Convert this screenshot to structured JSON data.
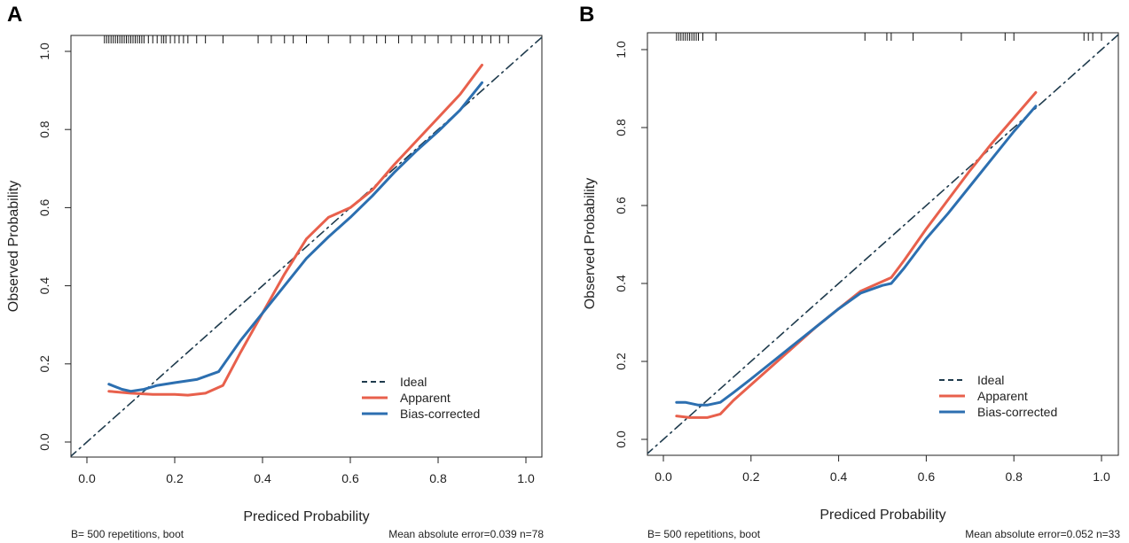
{
  "chart_data": [
    {
      "type": "line",
      "panel_label": "A",
      "xlabel": "Prediced Probability",
      "ylabel": "Observed Probability",
      "xlim": [
        0.0,
        1.0
      ],
      "ylim": [
        0.0,
        1.0
      ],
      "x_ticks": [
        "0.0",
        "0.2",
        "0.4",
        "0.6",
        "0.8",
        "1.0"
      ],
      "y_ticks": [
        "0.0",
        "0.2",
        "0.4",
        "0.6",
        "0.8",
        "1.0"
      ],
      "legend": {
        "placement": "bottom-right",
        "entries": [
          "Ideal",
          "Apparent",
          "Bias-corrected"
        ]
      },
      "series": [
        {
          "name": "Ideal",
          "color": "#1f3b4d",
          "style": "dashed",
          "x": [
            -0.04,
            1.04
          ],
          "y": [
            -0.04,
            1.04
          ]
        },
        {
          "name": "Apparent",
          "color": "#e8604c",
          "style": "solid",
          "x": [
            0.05,
            0.1,
            0.15,
            0.2,
            0.23,
            0.27,
            0.31,
            0.35,
            0.4,
            0.45,
            0.5,
            0.55,
            0.6,
            0.65,
            0.7,
            0.75,
            0.8,
            0.85,
            0.9
          ],
          "y": [
            0.13,
            0.125,
            0.122,
            0.122,
            0.12,
            0.125,
            0.145,
            0.23,
            0.33,
            0.43,
            0.52,
            0.575,
            0.6,
            0.645,
            0.71,
            0.77,
            0.83,
            0.89,
            0.965
          ]
        },
        {
          "name": "Bias-corrected",
          "color": "#2c6fb0",
          "style": "solid",
          "x": [
            0.05,
            0.08,
            0.1,
            0.13,
            0.16,
            0.2,
            0.25,
            0.3,
            0.35,
            0.4,
            0.45,
            0.5,
            0.55,
            0.6,
            0.65,
            0.7,
            0.75,
            0.8,
            0.85,
            0.9
          ],
          "y": [
            0.148,
            0.135,
            0.13,
            0.135,
            0.145,
            0.152,
            0.16,
            0.18,
            0.26,
            0.33,
            0.4,
            0.47,
            0.525,
            0.575,
            0.63,
            0.69,
            0.745,
            0.795,
            0.85,
            0.92
          ]
        }
      ],
      "rug_x": [
        0.04,
        0.045,
        0.05,
        0.055,
        0.06,
        0.065,
        0.07,
        0.075,
        0.08,
        0.085,
        0.09,
        0.095,
        0.1,
        0.105,
        0.11,
        0.115,
        0.12,
        0.125,
        0.13,
        0.14,
        0.15,
        0.16,
        0.17,
        0.175,
        0.18,
        0.19,
        0.2,
        0.21,
        0.22,
        0.23,
        0.25,
        0.27,
        0.31,
        0.39,
        0.42,
        0.45,
        0.47,
        0.5,
        0.55,
        0.6,
        0.63,
        0.66,
        0.68,
        0.71,
        0.74,
        0.77,
        0.8,
        0.83,
        0.86,
        0.88,
        0.9,
        0.92,
        0.94,
        0.96
      ],
      "footer_left": "B= 500 repetitions, boot",
      "footer_right": "Mean absolute error=0.039 n=78"
    },
    {
      "type": "line",
      "panel_label": "B",
      "xlabel": "Prediced Probability",
      "ylabel": "Observed Probability",
      "xlim": [
        0.0,
        1.0
      ],
      "ylim": [
        0.0,
        1.0
      ],
      "x_ticks": [
        "0.0",
        "0.2",
        "0.4",
        "0.6",
        "0.8",
        "1.0"
      ],
      "y_ticks": [
        "0.0",
        "0.2",
        "0.4",
        "0.6",
        "0.8",
        "1.0"
      ],
      "legend": {
        "placement": "bottom-right",
        "entries": [
          "Ideal",
          "Apparent",
          "Bias-corrected"
        ]
      },
      "series": [
        {
          "name": "Ideal",
          "color": "#1f3b4d",
          "style": "dashed",
          "x": [
            -0.04,
            1.04
          ],
          "y": [
            -0.04,
            1.04
          ]
        },
        {
          "name": "Apparent",
          "color": "#e8604c",
          "style": "solid",
          "x": [
            0.03,
            0.06,
            0.1,
            0.13,
            0.16,
            0.2,
            0.25,
            0.3,
            0.35,
            0.4,
            0.45,
            0.5,
            0.52,
            0.55,
            0.6,
            0.65,
            0.7,
            0.75,
            0.8,
            0.85
          ],
          "y": [
            0.06,
            0.056,
            0.056,
            0.065,
            0.1,
            0.14,
            0.19,
            0.24,
            0.29,
            0.335,
            0.38,
            0.405,
            0.415,
            0.46,
            0.54,
            0.615,
            0.69,
            0.76,
            0.825,
            0.89
          ]
        },
        {
          "name": "Bias-corrected",
          "color": "#2c6fb0",
          "style": "solid",
          "x": [
            0.03,
            0.05,
            0.08,
            0.1,
            0.13,
            0.16,
            0.2,
            0.25,
            0.3,
            0.35,
            0.4,
            0.45,
            0.5,
            0.52,
            0.55,
            0.6,
            0.65,
            0.7,
            0.75,
            0.8,
            0.85
          ],
          "y": [
            0.095,
            0.095,
            0.088,
            0.088,
            0.095,
            0.12,
            0.155,
            0.2,
            0.245,
            0.29,
            0.335,
            0.375,
            0.395,
            0.4,
            0.44,
            0.515,
            0.58,
            0.65,
            0.72,
            0.79,
            0.855
          ]
        }
      ],
      "rug_x": [
        0.03,
        0.035,
        0.04,
        0.045,
        0.05,
        0.055,
        0.06,
        0.065,
        0.07,
        0.075,
        0.08,
        0.09,
        0.12,
        0.46,
        0.51,
        0.52,
        0.57,
        0.68,
        0.78,
        0.8,
        0.96,
        0.97,
        0.98,
        1.0
      ],
      "footer_left": "B= 500 repetitions, boot",
      "footer_right": "Mean absolute error=0.052 n=33"
    }
  ]
}
